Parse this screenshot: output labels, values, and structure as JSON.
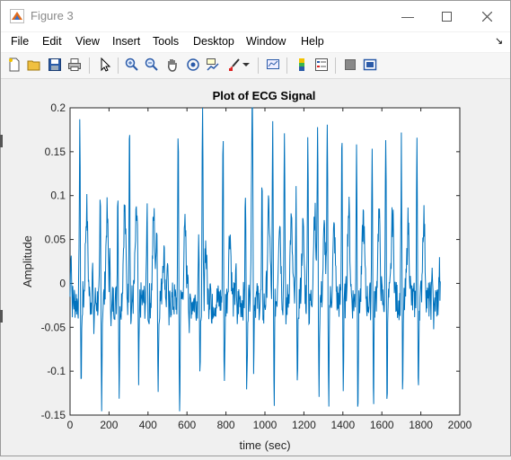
{
  "window": {
    "title": "Figure 3"
  },
  "menu": [
    "File",
    "Edit",
    "View",
    "Insert",
    "Tools",
    "Desktop",
    "Window",
    "Help"
  ],
  "toolbar": {
    "icons": [
      "new-figure-icon",
      "open-file-icon",
      "save-icon",
      "print-icon",
      "edit-plot-arrow-icon",
      "zoom-in-icon",
      "zoom-out-icon",
      "pan-hand-icon",
      "rotate-3d-icon",
      "data-cursor-icon",
      "brush-icon",
      "brush-dropdown-icon",
      "link-plot-icon",
      "insert-colorbar-icon",
      "insert-legend-icon",
      "hide-plot-tools-icon",
      "show-plot-tools-icon"
    ]
  },
  "chart_data": {
    "type": "line",
    "title": "Plot of ECG Signal",
    "xlabel": "time (sec)",
    "ylabel": "Amplitude",
    "xlim": [
      0,
      2000
    ],
    "ylim": [
      -0.15,
      0.2
    ],
    "x_ticks": [
      "0",
      "200",
      "400",
      "600",
      "800",
      "1000",
      "1200",
      "1400",
      "1600",
      "1800",
      "2000"
    ],
    "y_ticks": [
      "-0.15",
      "-0.1",
      "-0.05",
      "0",
      "0.05",
      "0.1",
      "0.15",
      "0.2"
    ],
    "grid": false,
    "line_color": "#0072BD",
    "series": [
      {
        "x_range": [
          0,
          1900
        ],
        "peaks": [
          {
            "x": 5,
            "up": 0.05
          },
          {
            "x": 50,
            "up": 0.19,
            "down": -0.12,
            "t": 0.13
          },
          {
            "x": 115,
            "up": 0.02,
            "down": -0.05
          },
          {
            "x": 155,
            "up": 0.09,
            "down": -0.125,
            "t": 0.12
          },
          {
            "x": 205,
            "up": 0.02,
            "down": -0.045
          },
          {
            "x": 245,
            "up": 0.11,
            "down": -0.12,
            "t": 0.13
          },
          {
            "x": 305,
            "up": 0.2,
            "down": -0.045,
            "t": 0.11
          },
          {
            "x": 345,
            "up": 0.01,
            "down": -0.13
          },
          {
            "x": 395,
            "up": 0.095,
            "down": -0.045,
            "t": 0.12
          },
          {
            "x": 445,
            "up": 0.08,
            "down": -0.12,
            "t": 0.07
          },
          {
            "x": 500,
            "up": 0.035,
            "down": -0.045
          },
          {
            "x": 555,
            "up": 0.18,
            "down": -0.15,
            "t": 0.1
          },
          {
            "x": 605,
            "up": 0.02,
            "down": -0.05
          },
          {
            "x": 660,
            "up": 0.075,
            "down": -0.12,
            "t": 0.08
          },
          {
            "x": 680,
            "up": 0.2,
            "down": -0.045
          },
          {
            "x": 720,
            "up": 0.02,
            "down": -0.05
          },
          {
            "x": 785,
            "up": 0.185,
            "down": -0.125,
            "t": 0.1
          },
          {
            "x": 850,
            "up": 0.02,
            "down": -0.045
          },
          {
            "x": 900,
            "up": 0.11,
            "down": -0.13,
            "t": 0.13
          },
          {
            "x": 935,
            "up": 0.2,
            "down": -0.14
          },
          {
            "x": 985,
            "up": 0.1,
            "down": -0.045,
            "t": 0.13
          },
          {
            "x": 1040,
            "up": 0.17,
            "down": -0.13,
            "t": 0.12
          },
          {
            "x": 1100,
            "up": 0.19,
            "down": -0.045,
            "t": 0.11
          },
          {
            "x": 1160,
            "up": 0.09,
            "down": -0.13,
            "t": 0.1
          },
          {
            "x": 1220,
            "up": 0.18,
            "down": -0.045,
            "t": 0.13
          },
          {
            "x": 1270,
            "up": 0.19,
            "down": -0.12,
            "t": 0.1
          },
          {
            "x": 1320,
            "up": 0.17,
            "down": -0.13,
            "t": 0.1
          },
          {
            "x": 1395,
            "up": 0.185,
            "down": -0.12,
            "t": 0.13
          },
          {
            "x": 1470,
            "up": 0.17,
            "down": -0.135,
            "t": 0.12
          },
          {
            "x": 1550,
            "up": 0.17,
            "down": -0.135,
            "t": 0.12
          },
          {
            "x": 1620,
            "up": 0.18,
            "down": -0.125,
            "t": 0.12
          },
          {
            "x": 1700,
            "up": 0.165,
            "down": -0.13,
            "t": 0.11
          },
          {
            "x": 1780,
            "up": 0.165,
            "down": -0.12,
            "t": 0.12
          },
          {
            "x": 1860,
            "up": 0.02,
            "down": -0.045
          },
          {
            "x": 1895,
            "up": 0.015
          }
        ]
      }
    ]
  }
}
